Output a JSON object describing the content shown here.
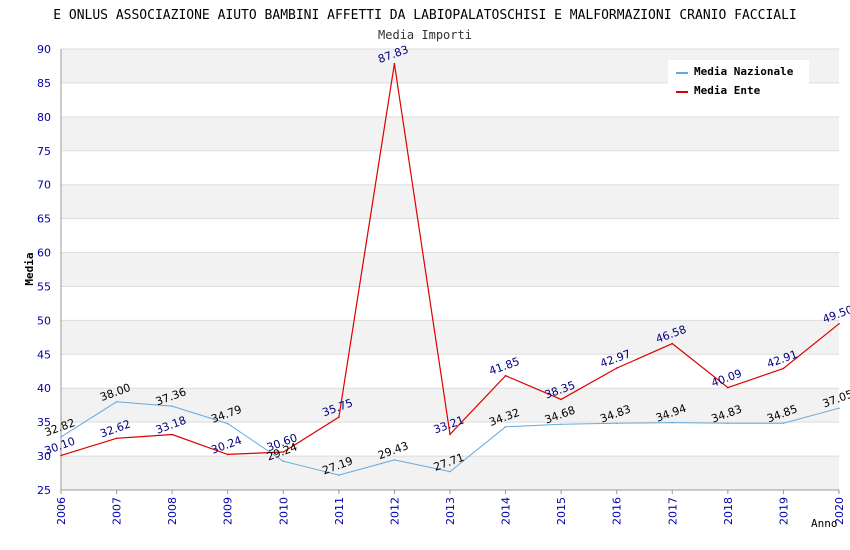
{
  "chart_data": {
    "type": "line",
    "title": "E ONLUS ASSOCIAZIONE AIUTO BAMBINI AFFETTI DA LABIOPALATOSCHISI E MALFORMAZIONI CRANIO FACCIALI",
    "subtitle": "Media Importi",
    "xlabel": "Anno",
    "ylabel": "Media",
    "ylim": [
      25,
      90
    ],
    "yticks": [
      25,
      30,
      35,
      40,
      45,
      50,
      55,
      60,
      65,
      70,
      75,
      80,
      85,
      90
    ],
    "x": [
      "2006",
      "2007",
      "2008",
      "2009",
      "2010",
      "2011",
      "2012",
      "2013",
      "2014",
      "2015",
      "2016",
      "2017",
      "2018",
      "2019",
      "2020"
    ],
    "series": [
      {
        "name": "Media Nazionale",
        "color": "#66aadd",
        "label_color": "#000000",
        "values": [
          32.82,
          38.0,
          37.36,
          34.79,
          29.24,
          27.19,
          29.43,
          27.71,
          34.32,
          34.68,
          34.83,
          34.94,
          34.83,
          34.85,
          37.05
        ],
        "labels": [
          "32.82",
          "38.00",
          "37.36",
          "34.79",
          "29.24",
          "27.19",
          "29.43",
          "27.71",
          "34.32",
          "34.68",
          "34.83",
          "34.94",
          "34.83",
          "34.85",
          "37.05"
        ]
      },
      {
        "name": "Media Ente",
        "color": "#dd0000",
        "label_color": "#000080",
        "values": [
          30.1,
          32.62,
          33.18,
          30.24,
          30.6,
          35.75,
          87.83,
          33.21,
          41.85,
          38.35,
          42.97,
          46.58,
          40.09,
          42.91,
          49.5
        ],
        "labels": [
          "30.10",
          "32.62",
          "33.18",
          "30.24",
          "30.60",
          "35.75",
          "87.83",
          "33.21",
          "41.85",
          "38.35",
          "42.97",
          "46.58",
          "40.09",
          "42.91",
          "49.50"
        ]
      }
    ],
    "grid": true,
    "legend_position": "top-right",
    "colors": {
      "axis_tick_text": "#0000aa",
      "band": "#f2f2f2",
      "grid": "#dddddd"
    }
  }
}
